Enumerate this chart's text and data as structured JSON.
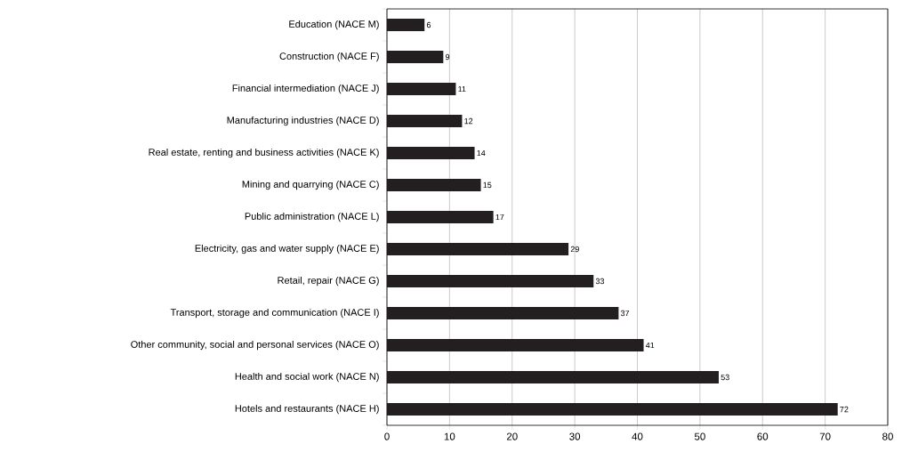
{
  "chart_data": {
    "type": "bar",
    "orientation": "horizontal",
    "categories": [
      "Education (NACE M)",
      "Construction (NACE F)",
      "Financial intermediation (NACE J)",
      "Manufacturing industries (NACE D)",
      "Real estate, renting and business activities (NACE K)",
      "Mining and quarrying (NACE C)",
      "Public administration (NACE L)",
      "Electricity, gas and water supply (NACE E)",
      "Retail, repair (NACE G)",
      "Transport, storage and communication (NACE I)",
      "Other community, social and personal services (NACE O)",
      "Health and social work (NACE N)",
      "Hotels and restaurants (NACE H)"
    ],
    "values": [
      6,
      9,
      11,
      12,
      14,
      15,
      17,
      29,
      33,
      37,
      41,
      53,
      72
    ],
    "color": "#231f20",
    "xlim": [
      0,
      80
    ],
    "xticks": [
      0,
      10,
      20,
      30,
      40,
      50,
      60,
      70,
      80
    ],
    "grid": "x",
    "data_labels": true
  }
}
